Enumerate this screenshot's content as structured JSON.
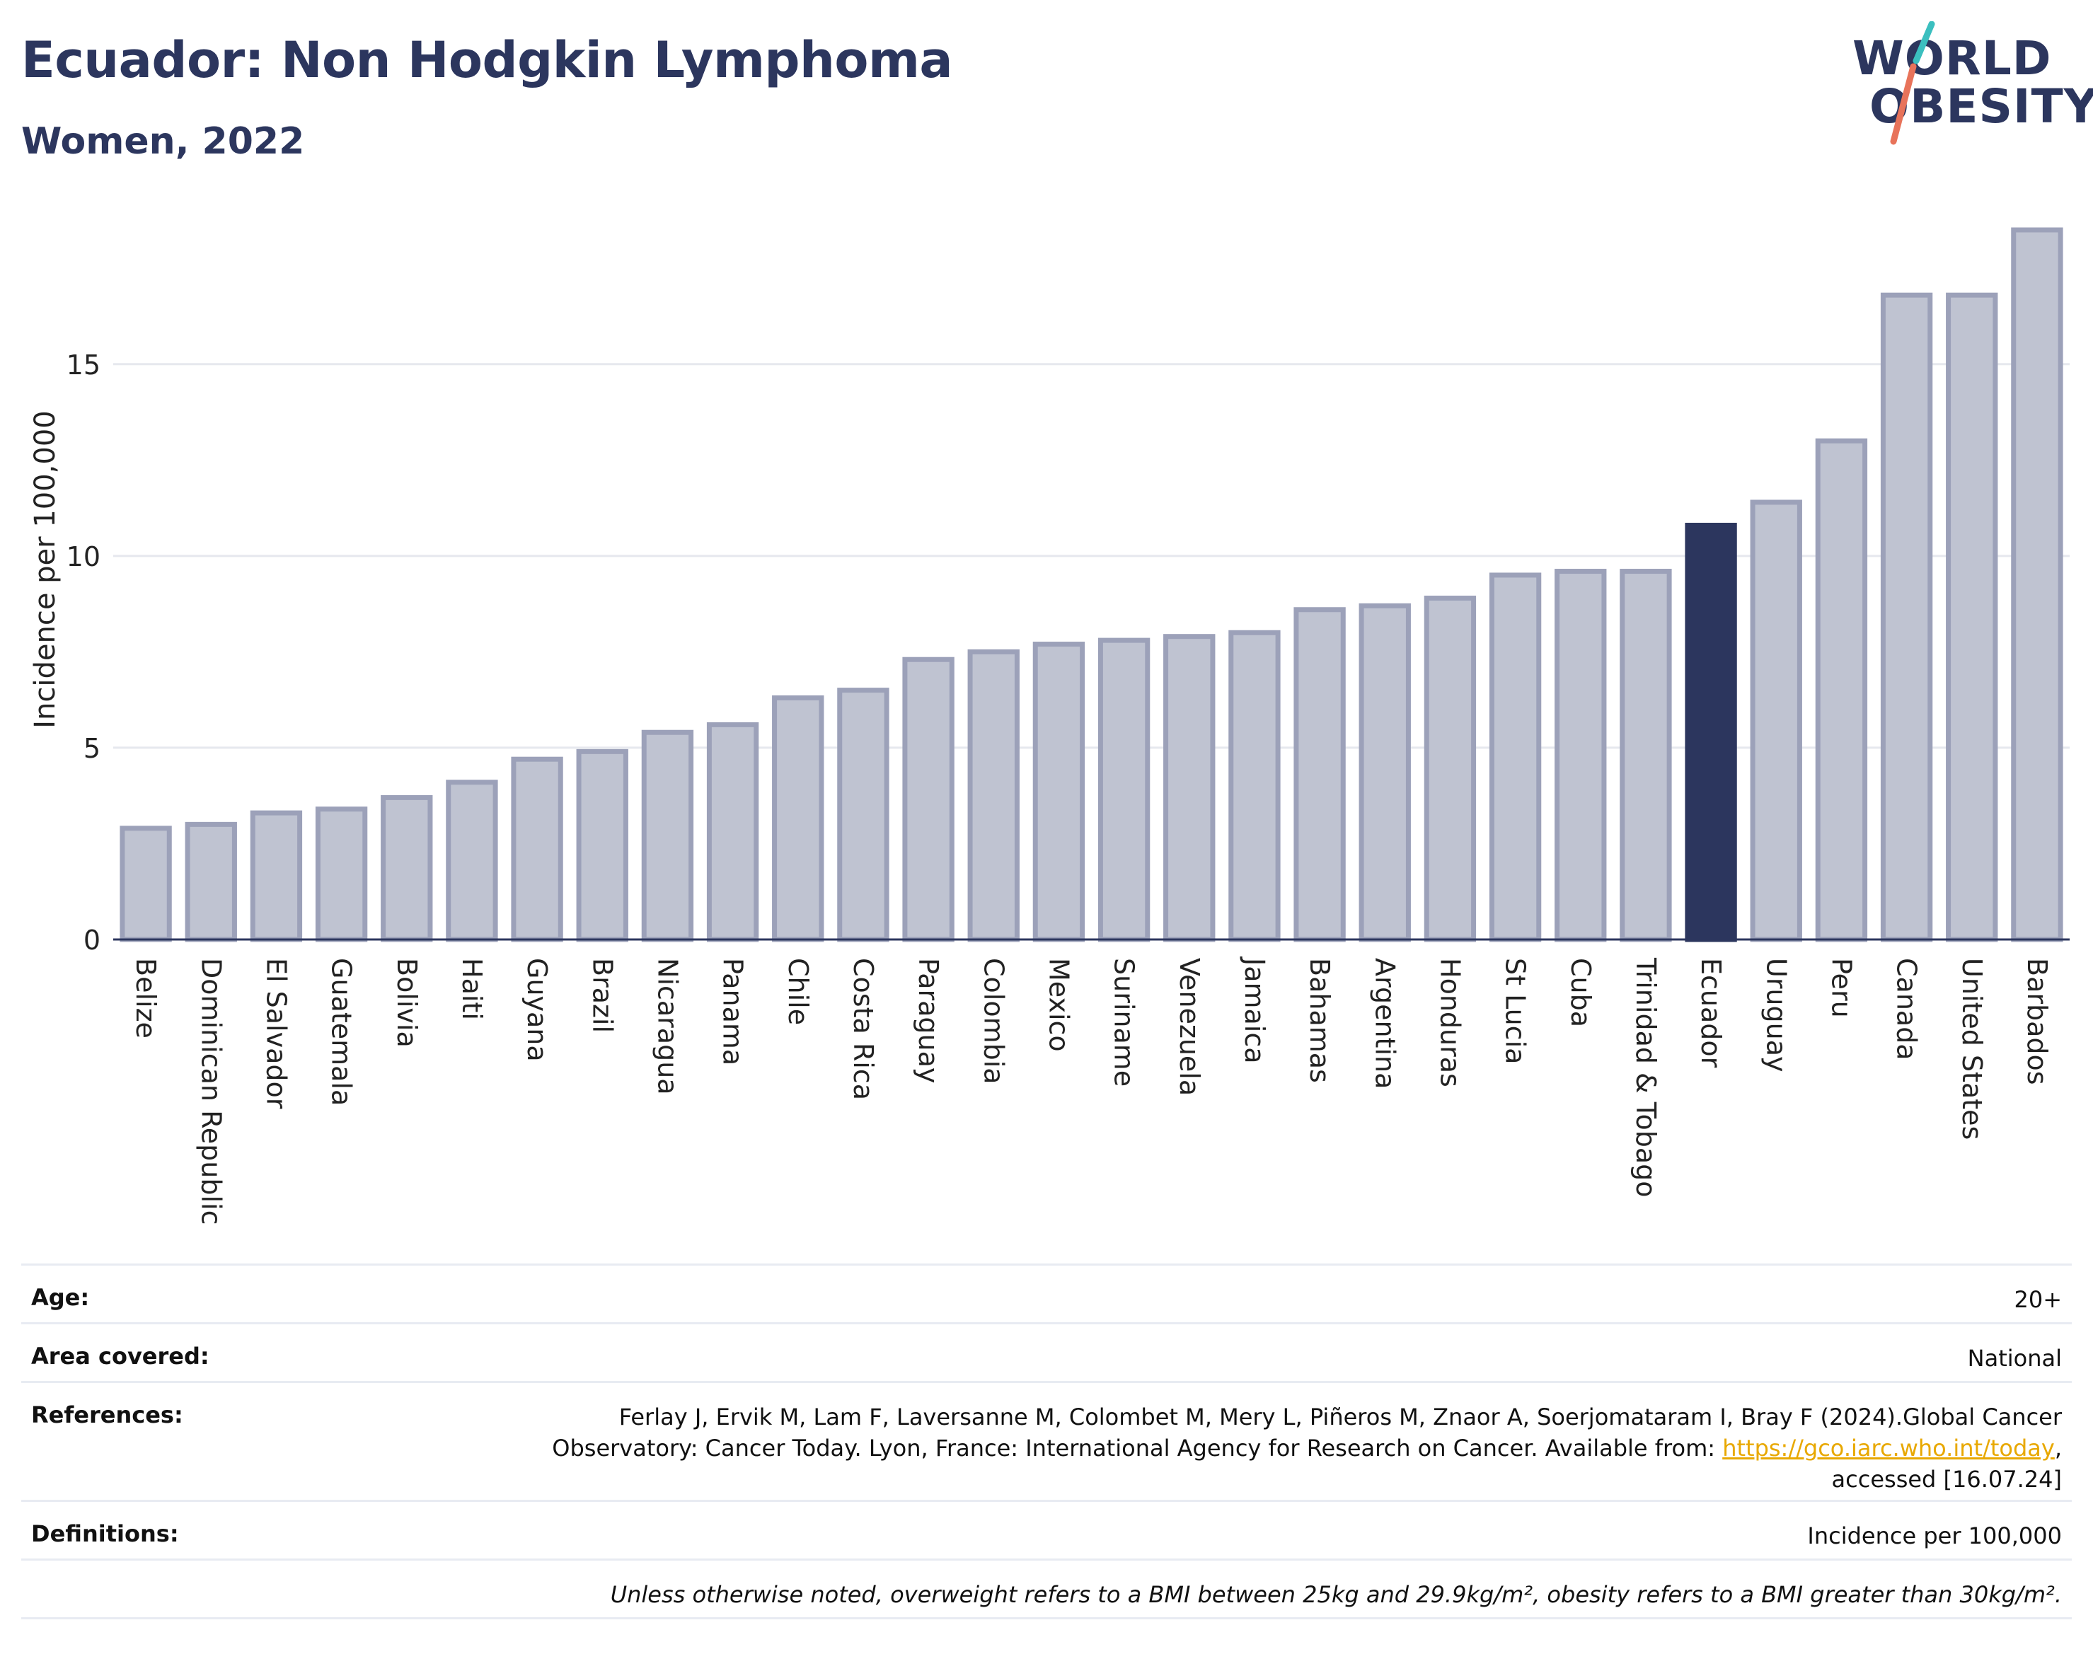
{
  "header": {
    "title": "Ecuador: Non Hodgkin Lymphoma",
    "subtitle": "Women, 2022"
  },
  "logo": {
    "line1": "WORLD",
    "line2": "OBESITY"
  },
  "colors": {
    "bar": "#bfc3d1",
    "bar_border": "#9ca1b9",
    "highlight": "#2c365e",
    "grid": "#e6e8ee",
    "axis": "#2c365e",
    "logo_teal": "#3bbfbf",
    "logo_coral": "#e8735a"
  },
  "chart_data": {
    "type": "bar",
    "title": "Ecuador: Non Hodgkin Lymphoma",
    "subtitle": "Women, 2022",
    "xlabel": "",
    "ylabel": "Incidence per 100,000",
    "ylim": [
      0,
      18.5
    ],
    "yticks": [
      0,
      5,
      10,
      15
    ],
    "grid": true,
    "highlight": "Ecuador",
    "categories": [
      "Belize",
      "Dominican Republic",
      "El Salvador",
      "Guatemala",
      "Bolivia",
      "Haiti",
      "Guyana",
      "Brazil",
      "Nicaragua",
      "Panama",
      "Chile",
      "Costa Rica",
      "Paraguay",
      "Colombia",
      "Mexico",
      "Suriname",
      "Venezuela",
      "Jamaica",
      "Bahamas",
      "Argentina",
      "Honduras",
      "St Lucia",
      "Cuba",
      "Trinidad & Tobago",
      "Ecuador",
      "Uruguay",
      "Peru",
      "Canada",
      "United States",
      "Barbados"
    ],
    "values": [
      2.9,
      3.0,
      3.3,
      3.4,
      3.7,
      4.1,
      4.7,
      4.9,
      5.4,
      5.6,
      6.3,
      6.5,
      7.3,
      7.5,
      7.7,
      7.8,
      7.9,
      8.0,
      8.6,
      8.7,
      8.9,
      9.5,
      9.6,
      9.6,
      10.8,
      11.4,
      13.0,
      16.8,
      16.8,
      18.5
    ]
  },
  "info": {
    "age_label": "Age:",
    "age_value": "20+",
    "area_label": "Area covered:",
    "area_value": "National",
    "references_label": "References:",
    "references_line1": "Ferlay J, Ervik M, Lam F, Laversanne M, Colombet M, Mery L, Piñeros M, Znaor A, Soerjomataram I, Bray F (2024).Global Cancer",
    "references_line2": "Observatory: Cancer Today. Lyon, France: International Agency for Research on Cancer. Available from: ",
    "references_link": "https://gco.iarc.who.int/today",
    "references_line2_end": ",",
    "references_line3": "accessed [16.07.24]",
    "definitions_label": "Definitions:",
    "definitions_value": "Incidence per 100,000",
    "note": "Unless otherwise noted, overweight refers to a BMI between 25kg and 29.9kg/m², obesity refers to a BMI greater than 30kg/m²."
  }
}
